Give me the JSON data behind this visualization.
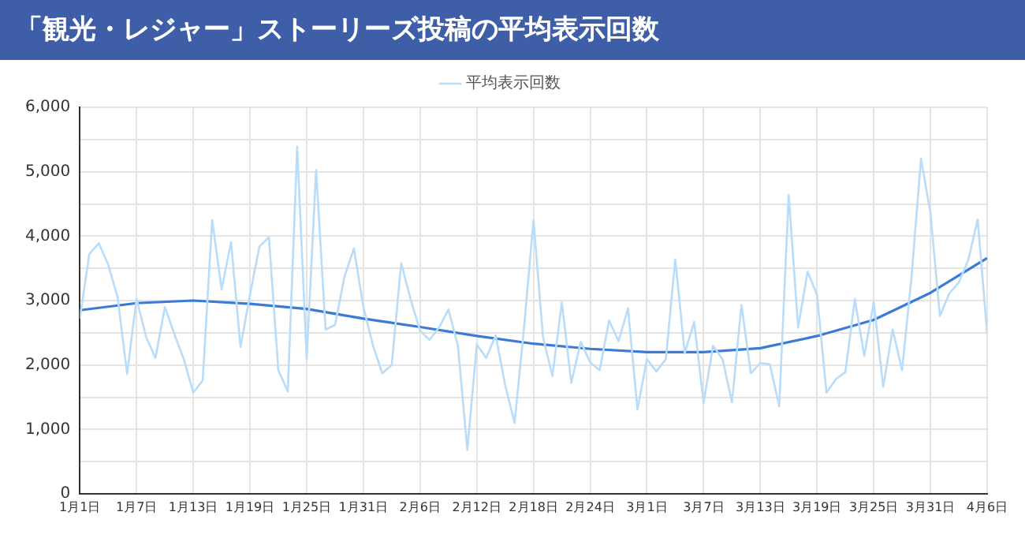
{
  "chart_data": {
    "type": "line",
    "title": "「観光・レジャー」ストーリーズ投稿の平均表示回数",
    "x": [
      "--01-01",
      "--01-02",
      "--01-03",
      "--01-04",
      "--01-05",
      "--01-06",
      "--01-07",
      "--01-08",
      "--01-09",
      "--01-10",
      "--01-11",
      "--01-12",
      "--01-13",
      "--01-14",
      "--01-15",
      "--01-16",
      "--01-17",
      "--01-18",
      "--01-19",
      "--01-20",
      "--01-21",
      "--01-22",
      "--01-23",
      "--01-24",
      "--01-25",
      "--01-26",
      "--01-27",
      "--01-28",
      "--01-29",
      "--01-30",
      "--01-31",
      "--02-01",
      "--02-02",
      "--02-03",
      "--02-04",
      "--02-05",
      "--02-06",
      "--02-07",
      "--02-08",
      "--02-09",
      "--02-10",
      "--02-11",
      "--02-12",
      "--02-13",
      "--02-14",
      "--02-15",
      "--02-16",
      "--02-17",
      "--02-18",
      "--02-19",
      "--02-20",
      "--02-21",
      "--02-22",
      "--02-23",
      "--02-24",
      "--02-25",
      "--02-26",
      "--02-27",
      "--02-28",
      "--02-29",
      "--03-01",
      "--03-02",
      "--03-03",
      "--03-04",
      "--03-05",
      "--03-06",
      "--03-07",
      "--03-08",
      "--03-09",
      "--03-10",
      "--03-11",
      "--03-12",
      "--03-13",
      "--03-14",
      "--03-15",
      "--03-16",
      "--03-17",
      "--03-18",
      "--03-19",
      "--03-20",
      "--03-21",
      "--03-22",
      "--03-23",
      "--03-24",
      "--03-25",
      "--03-26",
      "--03-27",
      "--03-28",
      "--03-29",
      "--03-30",
      "--03-31",
      "--04-01",
      "--04-02",
      "--04-03",
      "--04-04",
      "--04-05",
      "--04-06"
    ],
    "series": [
      {
        "name": "平均表示回数",
        "color": "#b9dcf9",
        "values": [
          2720,
          3720,
          3890,
          3560,
          3050,
          1860,
          3030,
          2440,
          2110,
          2900,
          2480,
          2090,
          1570,
          1760,
          4250,
          3170,
          3910,
          2280,
          3090,
          3840,
          3980,
          1920,
          1590,
          5390,
          2090,
          5030,
          2550,
          2620,
          3370,
          3810,
          2900,
          2310,
          1870,
          2000,
          3580,
          3020,
          2530,
          2390,
          2580,
          2860,
          2300,
          680,
          2320,
          2110,
          2460,
          1690,
          1100,
          2580,
          4250,
          2440,
          1830,
          2970,
          1720,
          2360,
          2040,
          1920,
          2690,
          2370,
          2880,
          1310,
          2090,
          1900,
          2090,
          3640,
          2180,
          2670,
          1410,
          2300,
          2090,
          1420,
          2930,
          1870,
          2030,
          2010,
          1360,
          4640,
          2580,
          3450,
          3090,
          1570,
          1780,
          1890,
          3020,
          2140,
          2980,
          1660,
          2550,
          1920,
          3370,
          5200,
          4360,
          2760,
          3110,
          3280,
          3630,
          4260,
          2480
        ]
      },
      {
        "type": "line",
        "color": "#3b7bd6",
        "x": [
          "--01-01",
          "--01-07",
          "--01-13",
          "--01-19",
          "--01-25",
          "--01-31",
          "--02-06",
          "--02-12",
          "--02-18",
          "--02-24",
          "--03-01",
          "--03-07",
          "--03-13",
          "--03-19",
          "--03-25",
          "--03-31",
          "--04-06"
        ],
        "values": [
          2850,
          2960,
          3000,
          2950,
          2870,
          2720,
          2590,
          2450,
          2330,
          2250,
          2200,
          2200,
          2260,
          2450,
          2700,
          3120,
          3660
        ]
      }
    ],
    "xlim": [
      "--01-01",
      "--04-06"
    ],
    "xticks": [
      {
        "value": "--01-01",
        "label": "1月1日"
      },
      {
        "value": "--01-07",
        "label": "1月7日"
      },
      {
        "value": "--01-13",
        "label": "1月13日"
      },
      {
        "value": "--01-19",
        "label": "1月19日"
      },
      {
        "value": "--01-25",
        "label": "1月25日"
      },
      {
        "value": "--01-31",
        "label": "1月31日"
      },
      {
        "value": "--02-06",
        "label": "2月6日"
      },
      {
        "value": "--02-12",
        "label": "2月12日"
      },
      {
        "value": "--02-18",
        "label": "2月18日"
      },
      {
        "value": "--02-24",
        "label": "2月24日"
      },
      {
        "value": "--03-01",
        "label": "3月1日"
      },
      {
        "value": "--03-07",
        "label": "3月7日"
      },
      {
        "value": "--03-13",
        "label": "3月13日"
      },
      {
        "value": "--03-19",
        "label": "3月19日"
      },
      {
        "value": "--03-25",
        "label": "3月25日"
      },
      {
        "value": "--03-31",
        "label": "3月31日"
      },
      {
        "value": "--04-06",
        "label": "4月6日"
      }
    ],
    "ylim": [
      0,
      6000
    ],
    "yticks": [
      0,
      {
        "value": 500,
        "label": null
      },
      {
        "value": 1000,
        "label": "1,000"
      },
      {
        "value": 1500,
        "label": null
      },
      {
        "value": 2000,
        "label": "2,000"
      },
      {
        "value": 2500,
        "label": null
      },
      {
        "value": 3000,
        "label": "3,000"
      },
      {
        "value": 3500,
        "label": null
      },
      {
        "value": 4000,
        "label": "4,000"
      },
      {
        "value": 4500,
        "label": null
      },
      {
        "value": 5000,
        "label": "5,000"
      },
      {
        "value": 5500,
        "label": null
      },
      {
        "value": 6000,
        "label": "6,000"
      }
    ],
    "grid": true,
    "legend": "top",
    "marker": "none",
    "line_style": "solid"
  }
}
